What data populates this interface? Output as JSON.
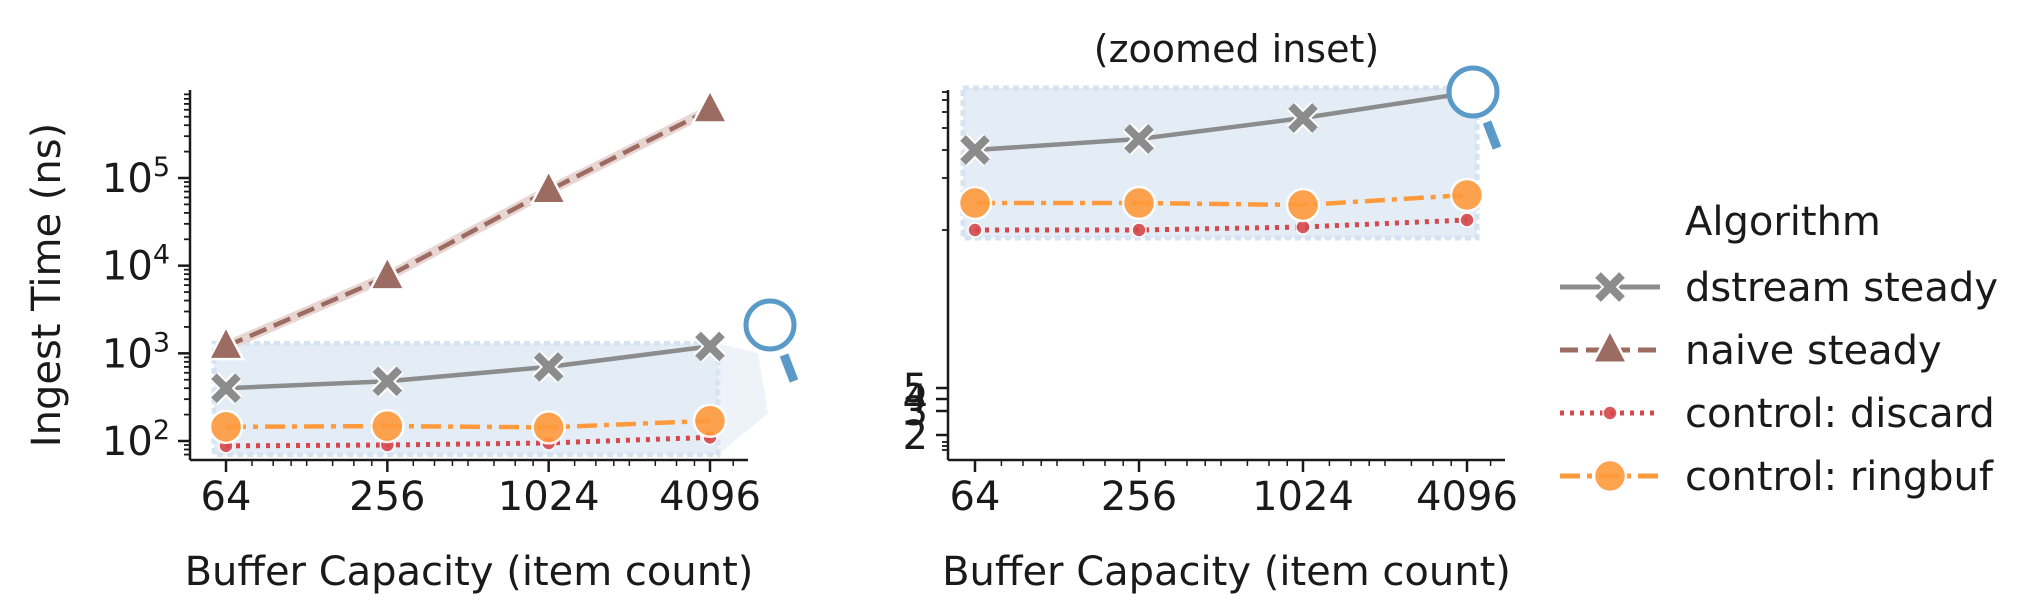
{
  "chart_data": [
    {
      "type": "line",
      "title": "",
      "xlabel": "Buffer Capacity (item count)",
      "ylabel": "Ingest Time (ns)",
      "xscale": "log2",
      "yscale": "log10",
      "x": [
        64,
        256,
        1024,
        4096
      ],
      "xtick_labels": [
        "64",
        "256",
        "1024",
        "4096"
      ],
      "ytick_labels": [
        {
          "base": "10",
          "exp": "2"
        },
        {
          "base": "10",
          "exp": "3"
        },
        {
          "base": "10",
          "exp": "4"
        },
        {
          "base": "10",
          "exp": "5"
        }
      ],
      "ylim": [
        60,
        1000000
      ],
      "series": [
        {
          "name": "dstream steady",
          "values": [
            400,
            480,
            700,
            1200
          ]
        },
        {
          "name": "naive steady",
          "values": [
            1200,
            7500,
            72000,
            600000
          ]
        },
        {
          "name": "control: discard",
          "values": [
            88,
            90,
            95,
            110
          ]
        },
        {
          "name": "control: ringbuf",
          "values": [
            145,
            148,
            143,
            170
          ]
        }
      ],
      "annotations": [
        "shaded zoom region",
        "magnifier-icon"
      ],
      "grid": false
    },
    {
      "type": "line",
      "title": "(zoomed inset)",
      "xlabel": "Buffer Capacity (item count)",
      "ylabel": "",
      "xscale": "log2",
      "yscale": "log10",
      "x": [
        64,
        256,
        1024,
        4096
      ],
      "xtick_labels": [
        "64",
        "256",
        "1024",
        "4096"
      ],
      "ytick_labels": [
        "2",
        "3",
        "4",
        "5"
      ],
      "series": [
        {
          "name": "dstream steady",
          "values": [
            400,
            480,
            700,
            1200
          ]
        },
        {
          "name": "control: discard",
          "values": [
            88,
            90,
            95,
            110
          ]
        },
        {
          "name": "control: ringbuf",
          "values": [
            145,
            148,
            143,
            170
          ]
        }
      ],
      "annotations": [
        "shaded zoom region",
        "magnifier-icon"
      ],
      "grid": false
    }
  ],
  "legend": {
    "title": "Algorithm",
    "placement": "right",
    "entries": [
      {
        "label": "dstream steady",
        "color": "#8c8c8c",
        "marker": "x",
        "dash": "solid"
      },
      {
        "label": "naive steady",
        "color": "#9c6b62",
        "marker": "triangle",
        "dash": "dashed"
      },
      {
        "label": "control: discard",
        "color": "#d6484c",
        "marker": "dot",
        "dash": "dotted"
      },
      {
        "label": "control: ringbuf",
        "color": "#ff9a3c",
        "marker": "circle",
        "dash": "dashdot"
      }
    ]
  },
  "colors": {
    "zoom_fill": "#dbe7f3",
    "zoom_edge": "#c9dcee",
    "magnifier": "#5a9ac8"
  }
}
